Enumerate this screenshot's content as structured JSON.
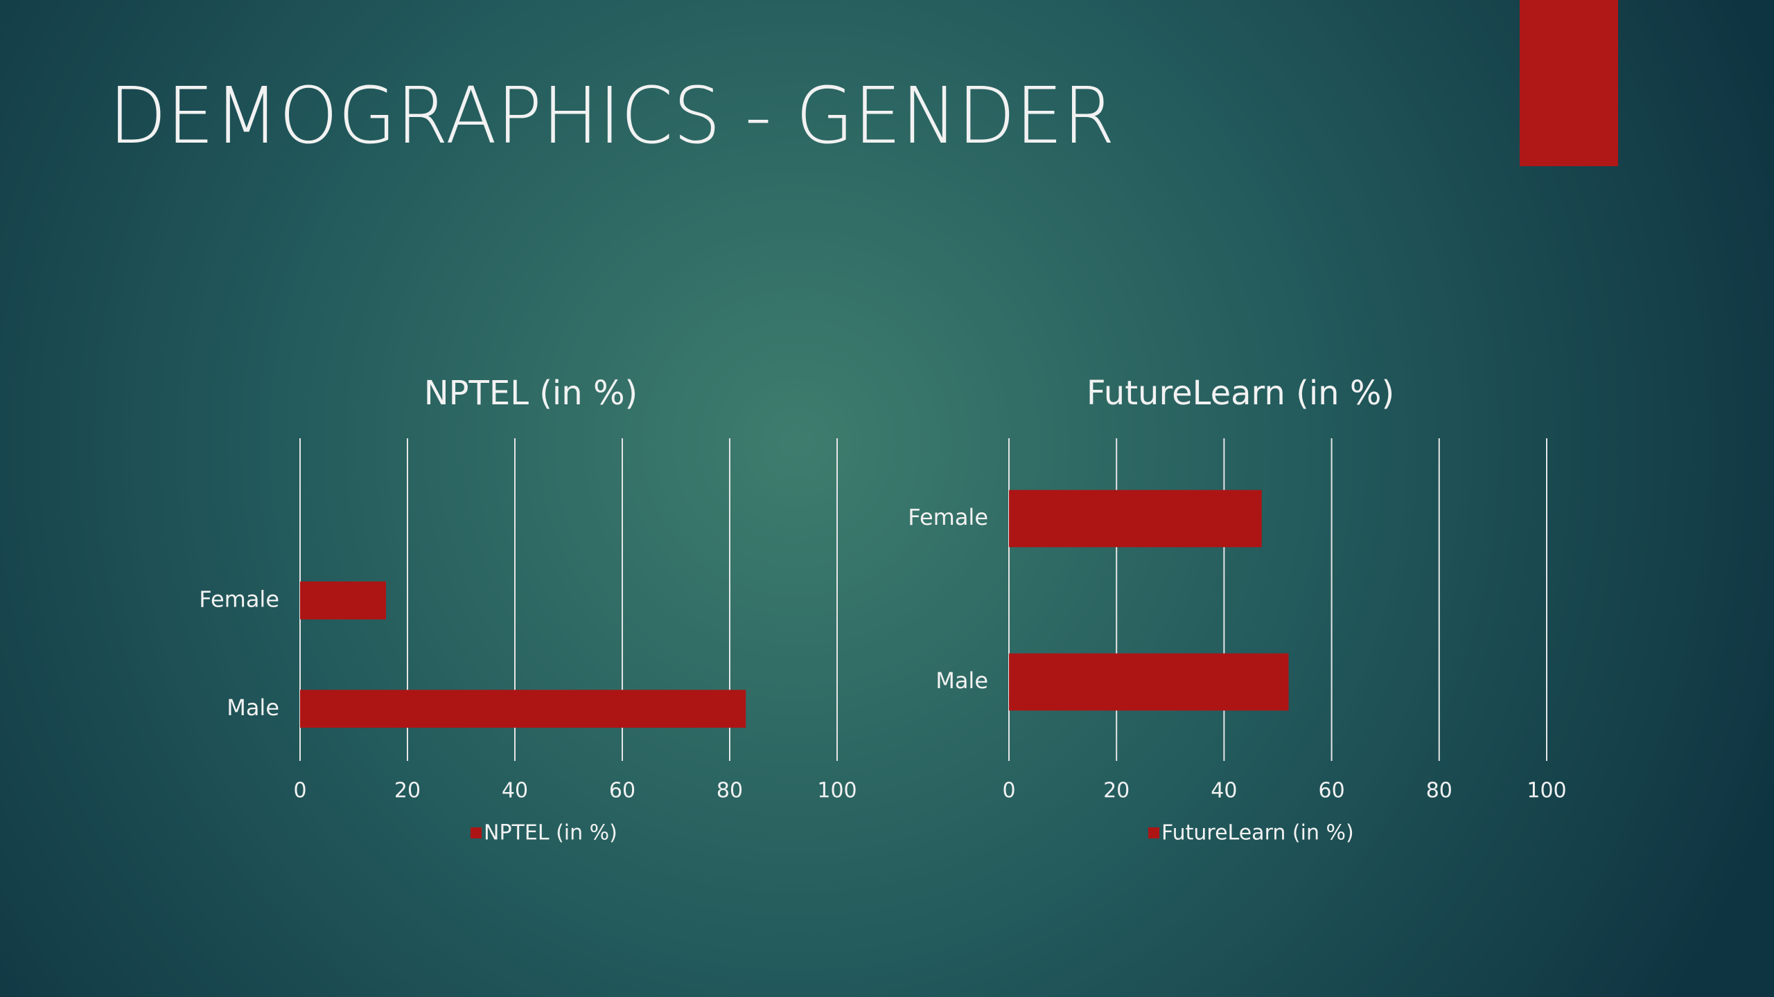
{
  "title": "DEMOGRAPHICS - GENDER",
  "chart_data": [
    {
      "type": "bar",
      "orientation": "horizontal",
      "title": "NPTEL (in %)",
      "categories": [
        "Female",
        "Male"
      ],
      "series": [
        {
          "name": "NPTEL (in %)",
          "color": "#ad1515",
          "values": [
            16,
            83
          ]
        }
      ],
      "xlim": [
        0,
        100
      ],
      "xticks": [
        0,
        20,
        40,
        60,
        80,
        100
      ],
      "grid": true,
      "legend": "bottom"
    },
    {
      "type": "bar",
      "orientation": "horizontal",
      "title": "FutureLearn (in %)",
      "categories": [
        "Female",
        "Male"
      ],
      "series": [
        {
          "name": "FutureLearn (in %)",
          "color": "#ad1515",
          "values": [
            47,
            52
          ]
        }
      ],
      "xlim": [
        0,
        100
      ],
      "xticks": [
        0,
        20,
        40,
        60,
        80,
        100
      ],
      "grid": true,
      "legend": "bottom"
    }
  ]
}
